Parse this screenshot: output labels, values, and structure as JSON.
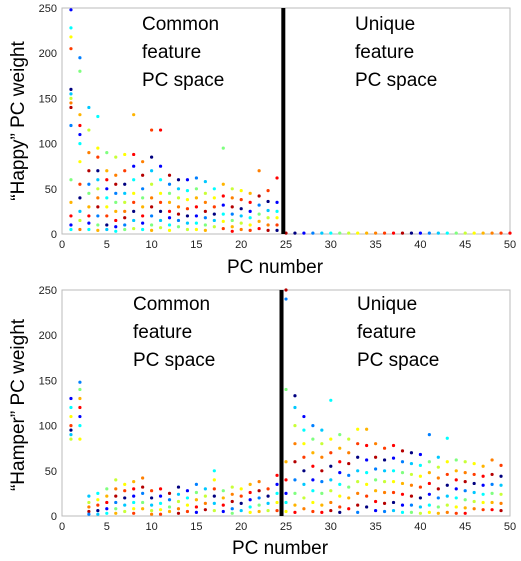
{
  "chart_data": [
    {
      "type": "scatter",
      "ylabel": "“Happy” PC weight",
      "xlabel": "PC number",
      "xlim": [
        0,
        50
      ],
      "ylim": [
        0,
        250
      ],
      "xticks": [
        0,
        5,
        10,
        15,
        20,
        25,
        30,
        35,
        40,
        45,
        50
      ],
      "yticks": [
        0,
        50,
        100,
        150,
        200,
        250
      ],
      "divider_x": 24.7,
      "annotations": {
        "left": [
          "Common",
          "feature",
          "PC space"
        ],
        "right": [
          "Unique",
          "feature",
          "PC space"
        ]
      },
      "points_per_pc": [
        {
          "x": 1,
          "y": [
            248,
            228,
            218,
            205,
            160,
            155,
            150,
            145,
            140,
            120,
            60,
            35,
            20,
            10,
            5
          ]
        },
        {
          "x": 2,
          "y": [
            195,
            180,
            132,
            120,
            110,
            100,
            80,
            55,
            40,
            25,
            15,
            5
          ]
        },
        {
          "x": 3,
          "y": [
            140,
            115,
            90,
            70,
            55,
            45,
            30,
            20,
            12,
            5
          ]
        },
        {
          "x": 4,
          "y": [
            130,
            95,
            85,
            70,
            60,
            50,
            40,
            30,
            20,
            10,
            4
          ]
        },
        {
          "x": 5,
          "y": [
            90,
            70,
            60,
            50,
            40,
            30,
            20,
            10,
            5
          ]
        },
        {
          "x": 6,
          "y": [
            85,
            65,
            55,
            45,
            35,
            25,
            15,
            8,
            3
          ]
        },
        {
          "x": 7,
          "y": [
            88,
            70,
            55,
            45,
            35,
            25,
            18,
            10,
            5
          ]
        },
        {
          "x": 8,
          "y": [
            132,
            88,
            75,
            60,
            45,
            35,
            25,
            15,
            6
          ]
        },
        {
          "x": 9,
          "y": [
            80,
            65,
            50,
            40,
            30,
            20,
            12,
            5
          ]
        },
        {
          "x": 10,
          "y": [
            115,
            85,
            70,
            55,
            40,
            30,
            20,
            10,
            4
          ]
        },
        {
          "x": 11,
          "y": [
            115,
            75,
            60,
            45,
            35,
            25,
            15,
            7
          ]
        },
        {
          "x": 12,
          "y": [
            65,
            55,
            45,
            35,
            25,
            18,
            10,
            4
          ]
        },
        {
          "x": 13,
          "y": [
            60,
            50,
            40,
            30,
            22,
            15,
            8
          ]
        },
        {
          "x": 14,
          "y": [
            60,
            48,
            38,
            28,
            20,
            12,
            5
          ]
        },
        {
          "x": 15,
          "y": [
            62,
            50,
            40,
            30,
            20,
            12,
            5
          ]
        },
        {
          "x": 16,
          "y": [
            58,
            45,
            35,
            25,
            18,
            10,
            4
          ]
        },
        {
          "x": 17,
          "y": [
            50,
            40,
            30,
            22,
            15,
            8
          ]
        },
        {
          "x": 18,
          "y": [
            95,
            55,
            42,
            32,
            22,
            14,
            6
          ]
        },
        {
          "x": 19,
          "y": [
            50,
            40,
            30,
            22,
            15,
            8,
            3
          ]
        },
        {
          "x": 20,
          "y": [
            48,
            38,
            28,
            20,
            12,
            5
          ]
        },
        {
          "x": 21,
          "y": [
            45,
            35,
            25,
            18,
            10,
            4
          ]
        },
        {
          "x": 22,
          "y": [
            70,
            42,
            32,
            22,
            14,
            6
          ]
        },
        {
          "x": 23,
          "y": [
            48,
            36,
            26,
            18,
            10,
            4
          ]
        },
        {
          "x": 24,
          "y": [
            62,
            35,
            25,
            18,
            10,
            4
          ]
        },
        {
          "x": 25,
          "y": [
            1
          ]
        },
        {
          "x": 26,
          "y": [
            1
          ]
        },
        {
          "x": 27,
          "y": [
            1
          ]
        },
        {
          "x": 28,
          "y": [
            1
          ]
        },
        {
          "x": 29,
          "y": [
            1
          ]
        },
        {
          "x": 30,
          "y": [
            1
          ]
        },
        {
          "x": 31,
          "y": [
            1
          ]
        },
        {
          "x": 32,
          "y": [
            1
          ]
        },
        {
          "x": 33,
          "y": [
            1
          ]
        },
        {
          "x": 34,
          "y": [
            1
          ]
        },
        {
          "x": 35,
          "y": [
            1
          ]
        },
        {
          "x": 36,
          "y": [
            1
          ]
        },
        {
          "x": 37,
          "y": [
            1
          ]
        },
        {
          "x": 38,
          "y": [
            1
          ]
        },
        {
          "x": 39,
          "y": [
            1
          ]
        },
        {
          "x": 40,
          "y": [
            1
          ]
        },
        {
          "x": 41,
          "y": [
            1
          ]
        },
        {
          "x": 42,
          "y": [
            1
          ]
        },
        {
          "x": 43,
          "y": [
            1
          ]
        },
        {
          "x": 44,
          "y": [
            1
          ]
        },
        {
          "x": 45,
          "y": [
            1
          ]
        },
        {
          "x": 46,
          "y": [
            1
          ]
        },
        {
          "x": 47,
          "y": [
            1
          ]
        },
        {
          "x": 48,
          "y": [
            1
          ]
        },
        {
          "x": 49,
          "y": [
            1
          ]
        },
        {
          "x": 50,
          "y": [
            1
          ]
        }
      ]
    },
    {
      "type": "scatter",
      "ylabel": "“Hamper” PC weight",
      "xlabel": "PC number",
      "xlim": [
        0,
        50
      ],
      "ylim": [
        0,
        250
      ],
      "xticks": [
        0,
        5,
        10,
        15,
        20,
        25,
        30,
        35,
        40,
        45,
        50
      ],
      "yticks": [
        0,
        50,
        100,
        150,
        200,
        250
      ],
      "divider_x": 24.5,
      "annotations": {
        "left": [
          "Common",
          "feature",
          "PC space"
        ],
        "right": [
          "Unique",
          "feature",
          "PC space"
        ]
      },
      "points_per_pc": [
        {
          "x": 1,
          "y": [
            130,
            120,
            110,
            100,
            95,
            90,
            85
          ]
        },
        {
          "x": 2,
          "y": [
            148,
            140,
            130,
            120,
            110,
            100,
            85
          ]
        },
        {
          "x": 3,
          "y": [
            22,
            15,
            10,
            5,
            2
          ]
        },
        {
          "x": 4,
          "y": [
            25,
            18,
            12,
            6,
            2
          ]
        },
        {
          "x": 5,
          "y": [
            30,
            22,
            15,
            8,
            3
          ]
        },
        {
          "x": 6,
          "y": [
            40,
            30,
            22,
            15,
            8,
            3
          ]
        },
        {
          "x": 7,
          "y": [
            35,
            28,
            20,
            12,
            5
          ]
        },
        {
          "x": 8,
          "y": [
            38,
            30,
            22,
            15,
            8,
            3
          ]
        },
        {
          "x": 9,
          "y": [
            42,
            32,
            25,
            15,
            8
          ]
        },
        {
          "x": 10,
          "y": [
            28,
            20,
            12,
            6,
            2
          ]
        },
        {
          "x": 11,
          "y": [
            30,
            22,
            14,
            7,
            2
          ]
        },
        {
          "x": 12,
          "y": [
            25,
            18,
            10,
            5
          ]
        },
        {
          "x": 13,
          "y": [
            32,
            24,
            16,
            8,
            3
          ]
        },
        {
          "x": 14,
          "y": [
            28,
            20,
            12,
            5
          ]
        },
        {
          "x": 15,
          "y": [
            35,
            26,
            18,
            10,
            4
          ]
        },
        {
          "x": 16,
          "y": [
            30,
            22,
            14,
            7
          ]
        },
        {
          "x": 17,
          "y": [
            50,
            40,
            30,
            22,
            14,
            6
          ]
        },
        {
          "x": 18,
          "y": [
            28,
            20,
            12,
            5
          ]
        },
        {
          "x": 19,
          "y": [
            32,
            24,
            16,
            8,
            3
          ]
        },
        {
          "x": 20,
          "y": [
            30,
            22,
            14,
            6
          ]
        },
        {
          "x": 21,
          "y": [
            35,
            26,
            18,
            10,
            4
          ]
        },
        {
          "x": 22,
          "y": [
            38,
            28,
            20,
            12,
            5
          ]
        },
        {
          "x": 23,
          "y": [
            30,
            22,
            14,
            6
          ]
        },
        {
          "x": 24,
          "y": [
            45,
            35,
            25,
            15,
            6
          ]
        },
        {
          "x": 25,
          "y": [
            250,
            240,
            140,
            60,
            40,
            25,
            15,
            5
          ]
        },
        {
          "x": 26,
          "y": [
            133,
            120,
            100,
            80,
            60,
            40,
            25,
            12,
            4
          ]
        },
        {
          "x": 27,
          "y": [
            110,
            95,
            80,
            65,
            50,
            35,
            20,
            8
          ]
        },
        {
          "x": 28,
          "y": [
            100,
            85,
            70,
            55,
            40,
            28,
            15,
            5
          ]
        },
        {
          "x": 29,
          "y": [
            95,
            80,
            65,
            50,
            38,
            25,
            12,
            4
          ]
        },
        {
          "x": 30,
          "y": [
            128,
            85,
            70,
            55,
            40,
            28,
            15,
            6
          ]
        },
        {
          "x": 31,
          "y": [
            90,
            75,
            60,
            48,
            35,
            22,
            10,
            4
          ]
        },
        {
          "x": 32,
          "y": [
            85,
            70,
            58,
            45,
            32,
            20,
            8
          ]
        },
        {
          "x": 33,
          "y": [
            96,
            80,
            65,
            50,
            38,
            25,
            12,
            4
          ]
        },
        {
          "x": 34,
          "y": [
            96,
            78,
            62,
            48,
            35,
            22,
            10
          ]
        },
        {
          "x": 35,
          "y": [
            80,
            65,
            52,
            40,
            28,
            16,
            6
          ]
        },
        {
          "x": 36,
          "y": [
            75,
            62,
            50,
            38,
            26,
            14,
            5
          ]
        },
        {
          "x": 37,
          "y": [
            78,
            64,
            50,
            38,
            26,
            15,
            6
          ]
        },
        {
          "x": 38,
          "y": [
            72,
            60,
            48,
            36,
            24,
            12,
            4
          ]
        },
        {
          "x": 39,
          "y": [
            70,
            58,
            46,
            34,
            22,
            12,
            4
          ]
        },
        {
          "x": 40,
          "y": [
            68,
            56,
            44,
            32,
            20,
            10,
            3
          ]
        },
        {
          "x": 41,
          "y": [
            90,
            60,
            48,
            36,
            24,
            12,
            4
          ]
        },
        {
          "x": 42,
          "y": [
            65,
            54,
            42,
            30,
            20,
            10,
            3
          ]
        },
        {
          "x": 43,
          "y": [
            86,
            60,
            46,
            34,
            22,
            12,
            4
          ]
        },
        {
          "x": 44,
          "y": [
            62,
            50,
            40,
            30,
            20,
            10,
            3
          ]
        },
        {
          "x": 45,
          "y": [
            60,
            48,
            38,
            28,
            18,
            9,
            3
          ]
        },
        {
          "x": 46,
          "y": [
            58,
            46,
            36,
            26,
            16,
            8
          ]
        },
        {
          "x": 47,
          "y": [
            55,
            44,
            34,
            24,
            15,
            7
          ]
        },
        {
          "x": 48,
          "y": [
            62,
            46,
            35,
            25,
            15,
            7
          ]
        },
        {
          "x": 49,
          "y": [
            56,
            44,
            34,
            24,
            14,
            6
          ]
        }
      ]
    }
  ]
}
